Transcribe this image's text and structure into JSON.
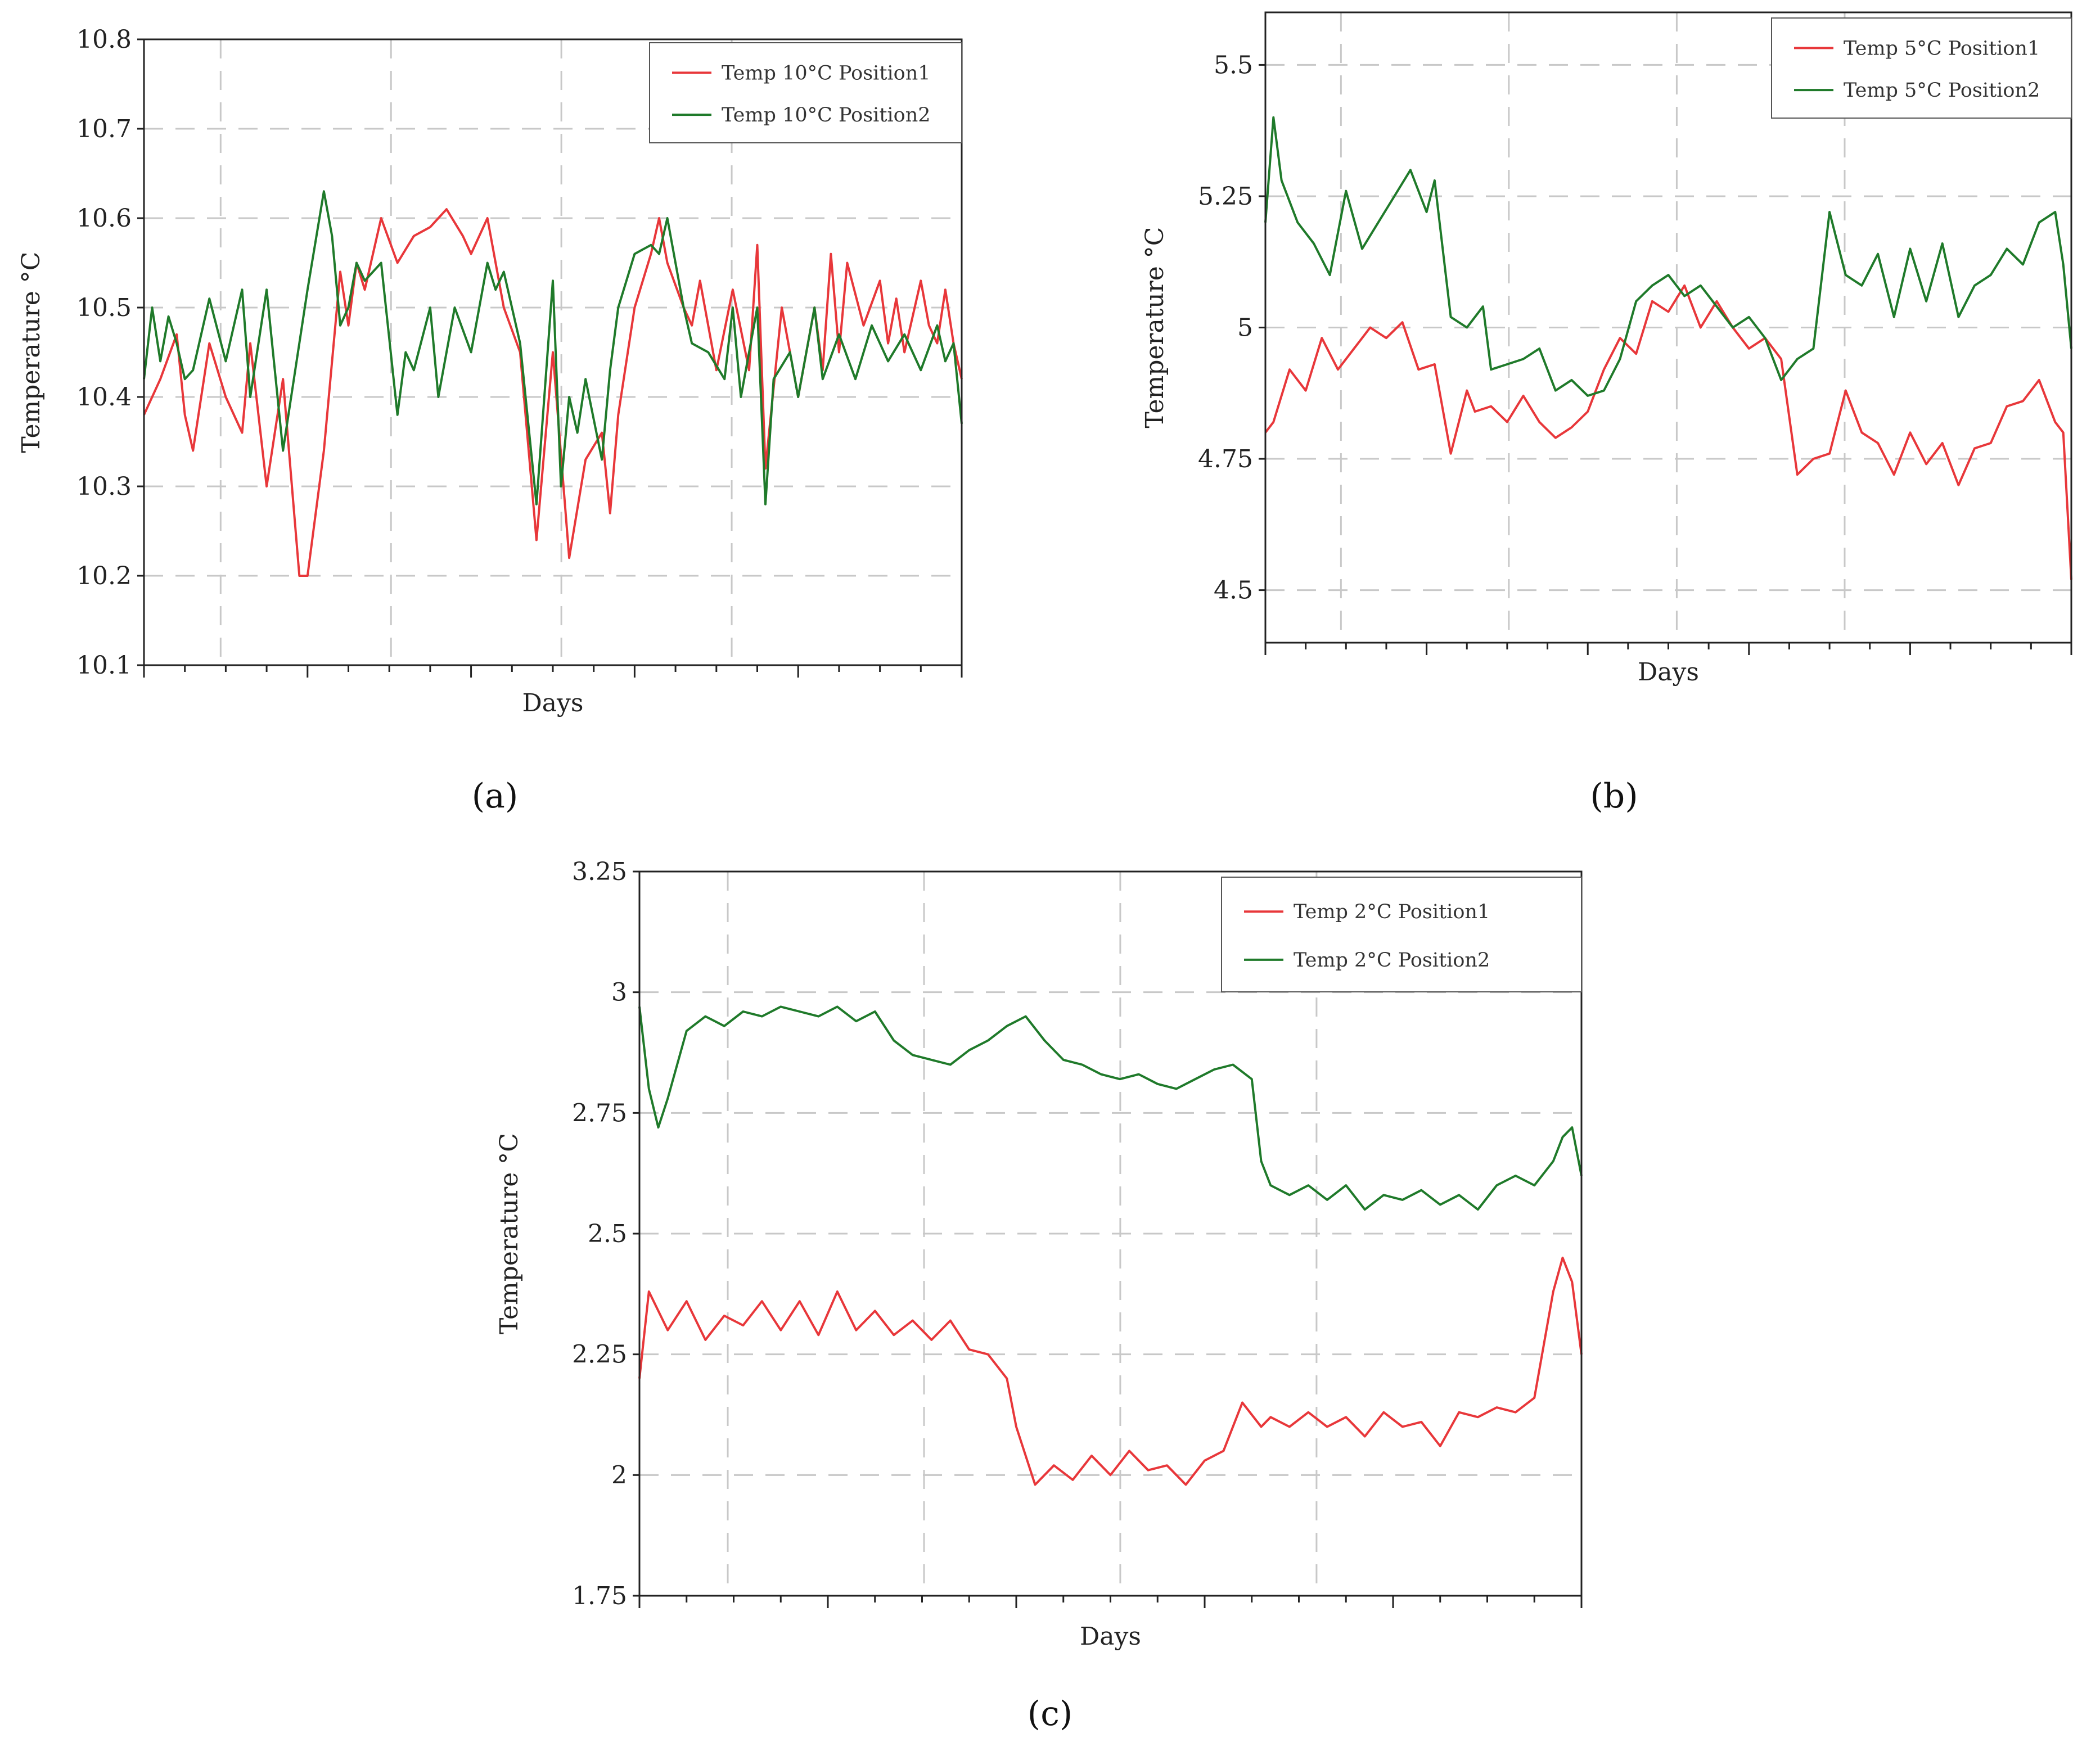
{
  "chart_data": [
    {
      "type": "line",
      "panel": "a",
      "xlabel": "Days",
      "ylabel": "Temperature °C",
      "ylim": [
        10.1,
        10.8
      ],
      "yticks": [
        "10.1",
        "10.2",
        "10.3",
        "10.4",
        "10.5",
        "10.6",
        "10.7",
        "10.8"
      ],
      "xlim": [
        0,
        100
      ],
      "grid": true,
      "legend_position": "top-right",
      "series": [
        {
          "name": "Temp 10°C Position1",
          "color": "#e8373a",
          "x": [
            0,
            2,
            4,
            5,
            6,
            8,
            10,
            12,
            13,
            15,
            17,
            19,
            20,
            22,
            24,
            25,
            26,
            27,
            29,
            31,
            33,
            35,
            37,
            39,
            40,
            42,
            44,
            46,
            48,
            50,
            52,
            54,
            56,
            57,
            58,
            60,
            62,
            63,
            64,
            66,
            67,
            68,
            70,
            72,
            74,
            75,
            76,
            78,
            80,
            82,
            83,
            84,
            85,
            86,
            88,
            90,
            91,
            92,
            93,
            95,
            96,
            97,
            98,
            99,
            100
          ],
          "values": [
            10.38,
            10.42,
            10.47,
            10.38,
            10.34,
            10.46,
            10.4,
            10.36,
            10.46,
            10.3,
            10.42,
            10.2,
            10.2,
            10.34,
            10.54,
            10.48,
            10.55,
            10.52,
            10.6,
            10.55,
            10.58,
            10.59,
            10.61,
            10.58,
            10.56,
            10.6,
            10.5,
            10.45,
            10.24,
            10.45,
            10.22,
            10.33,
            10.36,
            10.27,
            10.38,
            10.5,
            10.56,
            10.6,
            10.55,
            10.5,
            10.48,
            10.53,
            10.43,
            10.52,
            10.43,
            10.57,
            10.32,
            10.5,
            10.4,
            10.5,
            10.43,
            10.56,
            10.45,
            10.55,
            10.48,
            10.53,
            10.46,
            10.51,
            10.45,
            10.53,
            10.48,
            10.46,
            10.52,
            10.46,
            10.42
          ]
        },
        {
          "name": "Temp 10°C Position2",
          "color": "#1f7a2a",
          "x": [
            0,
            1,
            2,
            3,
            4,
            5,
            6,
            8,
            10,
            12,
            13,
            15,
            17,
            18,
            20,
            22,
            23,
            24,
            25,
            26,
            27,
            29,
            31,
            32,
            33,
            35,
            36,
            38,
            40,
            42,
            43,
            44,
            46,
            48,
            50,
            51,
            52,
            53,
            54,
            56,
            57,
            58,
            60,
            62,
            63,
            64,
            66,
            67,
            69,
            71,
            72,
            73,
            75,
            76,
            77,
            79,
            80,
            82,
            83,
            85,
            87,
            89,
            91,
            93,
            95,
            97,
            98,
            99,
            100
          ],
          "values": [
            10.42,
            10.5,
            10.44,
            10.49,
            10.46,
            10.42,
            10.43,
            10.51,
            10.44,
            10.52,
            10.4,
            10.52,
            10.34,
            10.4,
            10.52,
            10.63,
            10.58,
            10.48,
            10.5,
            10.55,
            10.53,
            10.55,
            10.38,
            10.45,
            10.43,
            10.5,
            10.4,
            10.5,
            10.45,
            10.55,
            10.52,
            10.54,
            10.46,
            10.28,
            10.53,
            10.3,
            10.4,
            10.36,
            10.42,
            10.33,
            10.43,
            10.5,
            10.56,
            10.57,
            10.56,
            10.6,
            10.5,
            10.46,
            10.45,
            10.42,
            10.5,
            10.4,
            10.5,
            10.28,
            10.42,
            10.45,
            10.4,
            10.5,
            10.42,
            10.47,
            10.42,
            10.48,
            10.44,
            10.47,
            10.43,
            10.48,
            10.44,
            10.46,
            10.37
          ]
        }
      ]
    },
    {
      "type": "line",
      "panel": "b",
      "xlabel": "Days",
      "ylabel": "Temperature °C",
      "ylim": [
        4.4,
        5.6
      ],
      "yticks": [
        "4.5",
        "4.75",
        "5",
        "5.25",
        "5.5"
      ],
      "xlim": [
        0,
        100
      ],
      "grid": true,
      "legend_position": "top-right",
      "series": [
        {
          "name": "Temp 5°C Position1",
          "color": "#e8373a",
          "x": [
            0,
            1,
            3,
            5,
            7,
            9,
            11,
            13,
            15,
            17,
            19,
            21,
            23,
            25,
            26,
            28,
            30,
            32,
            34,
            36,
            38,
            40,
            42,
            44,
            46,
            48,
            50,
            52,
            54,
            56,
            58,
            60,
            62,
            64,
            66,
            68,
            70,
            72,
            74,
            76,
            78,
            80,
            82,
            84,
            86,
            88,
            90,
            92,
            94,
            96,
            98,
            99,
            100
          ],
          "values": [
            4.8,
            4.82,
            4.92,
            4.88,
            4.98,
            4.92,
            4.96,
            5.0,
            4.98,
            5.01,
            4.92,
            4.93,
            4.76,
            4.88,
            4.84,
            4.85,
            4.82,
            4.87,
            4.82,
            4.79,
            4.81,
            4.84,
            4.92,
            4.98,
            4.95,
            5.05,
            5.03,
            5.08,
            5.0,
            5.05,
            5.0,
            4.96,
            4.98,
            4.94,
            4.72,
            4.75,
            4.76,
            4.88,
            4.8,
            4.78,
            4.72,
            4.8,
            4.74,
            4.78,
            4.7,
            4.77,
            4.78,
            4.85,
            4.86,
            4.9,
            4.82,
            4.8,
            4.52
          ]
        },
        {
          "name": "Temp 5°C Position2",
          "color": "#1f7a2a",
          "x": [
            0,
            1,
            2,
            4,
            6,
            8,
            10,
            12,
            14,
            16,
            18,
            20,
            21,
            23,
            25,
            27,
            28,
            30,
            32,
            34,
            36,
            38,
            40,
            42,
            44,
            46,
            48,
            50,
            52,
            54,
            56,
            58,
            60,
            62,
            64,
            66,
            68,
            70,
            72,
            74,
            76,
            78,
            80,
            82,
            84,
            86,
            88,
            90,
            92,
            94,
            96,
            98,
            99,
            100
          ],
          "values": [
            5.2,
            5.4,
            5.28,
            5.2,
            5.16,
            5.1,
            5.26,
            5.15,
            5.2,
            5.25,
            5.3,
            5.22,
            5.28,
            5.02,
            5.0,
            5.04,
            4.92,
            4.93,
            4.94,
            4.96,
            4.88,
            4.9,
            4.87,
            4.88,
            4.94,
            5.05,
            5.08,
            5.1,
            5.06,
            5.08,
            5.04,
            5.0,
            5.02,
            4.98,
            4.9,
            4.94,
            4.96,
            5.22,
            5.1,
            5.08,
            5.14,
            5.02,
            5.15,
            5.05,
            5.16,
            5.02,
            5.08,
            5.1,
            5.15,
            5.12,
            5.2,
            5.22,
            5.12,
            4.96
          ]
        }
      ]
    },
    {
      "type": "line",
      "panel": "c",
      "xlabel": "Days",
      "ylabel": "Temperature °C",
      "ylim": [
        1.75,
        3.25
      ],
      "yticks": [
        "1.75",
        "2",
        "2.25",
        "2.5",
        "2.75",
        "3",
        "3.25"
      ],
      "xlim": [
        0,
        100
      ],
      "grid": true,
      "legend_position": "top-right",
      "series": [
        {
          "name": "Temp 2°C Position1",
          "color": "#e8373a",
          "x": [
            0,
            1,
            3,
            5,
            7,
            9,
            11,
            13,
            15,
            17,
            19,
            21,
            23,
            25,
            27,
            29,
            31,
            33,
            35,
            37,
            39,
            40,
            42,
            44,
            46,
            48,
            50,
            52,
            54,
            56,
            58,
            60,
            62,
            64,
            66,
            67,
            69,
            71,
            73,
            75,
            77,
            79,
            81,
            83,
            85,
            87,
            89,
            91,
            93,
            95,
            97,
            98,
            99,
            100
          ],
          "values": [
            2.2,
            2.38,
            2.3,
            2.36,
            2.28,
            2.33,
            2.31,
            2.36,
            2.3,
            2.36,
            2.29,
            2.38,
            2.3,
            2.34,
            2.29,
            2.32,
            2.28,
            2.32,
            2.26,
            2.25,
            2.2,
            2.1,
            1.98,
            2.02,
            1.99,
            2.04,
            2.0,
            2.05,
            2.01,
            2.02,
            1.98,
            2.03,
            2.05,
            2.15,
            2.1,
            2.12,
            2.1,
            2.13,
            2.1,
            2.12,
            2.08,
            2.13,
            2.1,
            2.11,
            2.06,
            2.13,
            2.12,
            2.14,
            2.13,
            2.16,
            2.38,
            2.45,
            2.4,
            2.25
          ]
        },
        {
          "name": "Temp 2°C Position2",
          "color": "#1f7a2a",
          "x": [
            0,
            1,
            2,
            3,
            5,
            7,
            9,
            11,
            13,
            15,
            17,
            19,
            21,
            23,
            25,
            27,
            29,
            31,
            33,
            35,
            37,
            39,
            41,
            43,
            45,
            47,
            49,
            51,
            53,
            55,
            57,
            59,
            61,
            63,
            65,
            66,
            67,
            69,
            71,
            73,
            75,
            77,
            79,
            81,
            83,
            85,
            87,
            89,
            91,
            93,
            95,
            97,
            98,
            99,
            100
          ],
          "values": [
            2.97,
            2.8,
            2.72,
            2.78,
            2.92,
            2.95,
            2.93,
            2.96,
            2.95,
            2.97,
            2.96,
            2.95,
            2.97,
            2.94,
            2.96,
            2.9,
            2.87,
            2.86,
            2.85,
            2.88,
            2.9,
            2.93,
            2.95,
            2.9,
            2.86,
            2.85,
            2.83,
            2.82,
            2.83,
            2.81,
            2.8,
            2.82,
            2.84,
            2.85,
            2.82,
            2.65,
            2.6,
            2.58,
            2.6,
            2.57,
            2.6,
            2.55,
            2.58,
            2.57,
            2.59,
            2.56,
            2.58,
            2.55,
            2.6,
            2.62,
            2.6,
            2.65,
            2.7,
            2.72,
            2.62
          ]
        }
      ]
    }
  ],
  "panel_labels": [
    "(a)",
    "(b)",
    "(c)"
  ]
}
